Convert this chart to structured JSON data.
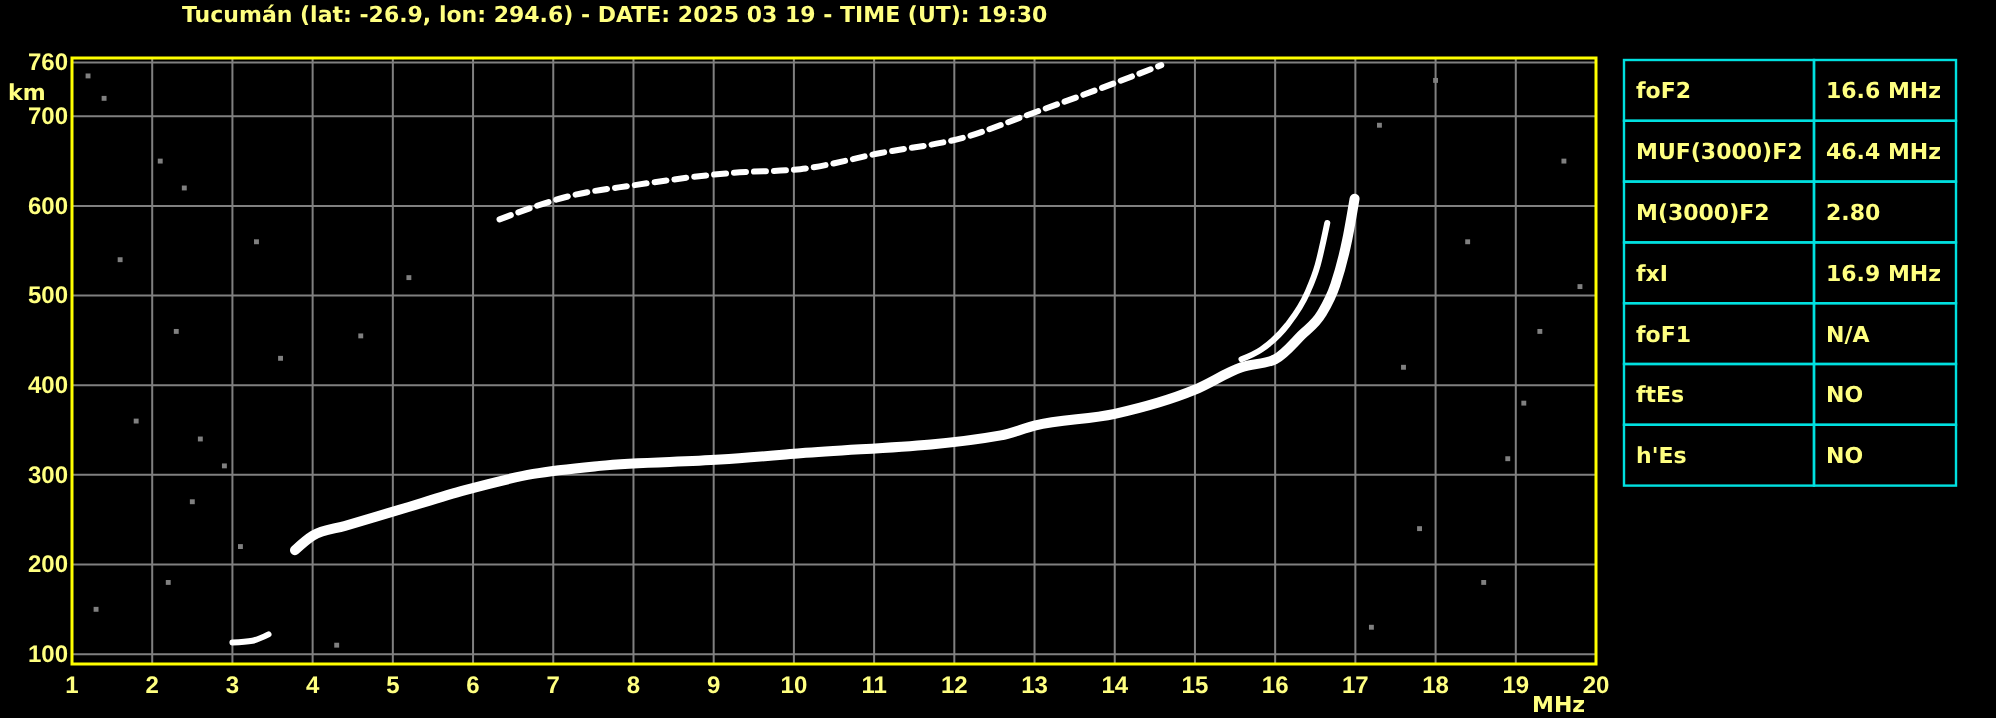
{
  "chart_data": [
    {
      "type": "line",
      "title": "Tucumán (lat: -26.9, lon: 294.6) - DATE: 2025 03 19 - TIME (UT): 19:30",
      "xlabel": "MHz",
      "ylabel": "km",
      "xlim": [
        1,
        20
      ],
      "xticks": [
        1,
        2,
        3,
        4,
        5,
        6,
        7,
        8,
        9,
        10,
        11,
        12,
        13,
        14,
        15,
        16,
        17,
        18,
        19,
        20
      ],
      "ylim": [
        89,
        765
      ],
      "yticks": [
        100,
        200,
        300,
        400,
        500,
        600,
        700,
        760
      ],
      "grid": true,
      "series": [
        {
          "color": "#ffffff",
          "x": [
            3.78,
            4.0,
            4.4,
            5.08,
            5.9,
            6.75,
            7.58,
            9.08,
            10.08,
            12.58,
            13.0,
            14.0,
            15.0,
            15.58,
            16.0,
            16.33,
            16.58,
            16.75,
            16.9,
            16.99
          ],
          "values": [
            216,
            232,
            243,
            261,
            283,
            301,
            310,
            317,
            324,
            344,
            355,
            368,
            395,
            420,
            429,
            456,
            480,
            512,
            563,
            608
          ]
        },
        {
          "color": "#ffffff",
          "x": [
            15.58,
            15.83,
            16.15,
            16.4,
            16.53,
            16.65
          ],
          "values": [
            429,
            440,
            467,
            503,
            534,
            581
          ]
        },
        {
          "color": "#ffffff",
          "line_style": "dashed",
          "x": [
            6.33,
            7.25,
            8.0,
            9.25,
            10.08,
            11.08,
            12.15,
            12.9,
            13.58,
            14.58
          ],
          "values": [
            585,
            612,
            623,
            637,
            641,
            659,
            677,
            701,
            723,
            757
          ]
        },
        {
          "color": "#ffffff",
          "x": [
            3.0,
            3.25,
            3.45
          ],
          "values": [
            113,
            115,
            122
          ]
        },
        {
          "type": "scatter",
          "color": "#808080",
          "marker": "square",
          "x": [
            1.2,
            1.4,
            1.6,
            2.1,
            2.3,
            2.6,
            2.9,
            3.3,
            3.6,
            1.8,
            2.5,
            3.1,
            1.3,
            2.2,
            4.6,
            5.2,
            17.3,
            17.6,
            18.0,
            18.4,
            18.9,
            19.3,
            19.6,
            17.8,
            18.6,
            19.1,
            17.2,
            19.8,
            4.3,
            2.4
          ],
          "values": [
            745,
            720,
            540,
            650,
            460,
            340,
            310,
            560,
            430,
            360,
            270,
            220,
            150,
            180,
            455,
            520,
            690,
            420,
            740,
            560,
            318,
            460,
            650,
            240,
            180,
            380,
            130,
            510,
            110,
            620
          ]
        }
      ]
    },
    {
      "type": "other",
      "annotations": [
        "foF2",
        "16.6 MHz",
        "MUF(3000)F2",
        "46.4 MHz",
        "M(3000)F2",
        "2.80",
        "fxI",
        "16.9 MHz",
        "foF1",
        "N/A",
        "ftEs",
        "NO",
        "h'Es",
        "NO"
      ]
    }
  ]
}
